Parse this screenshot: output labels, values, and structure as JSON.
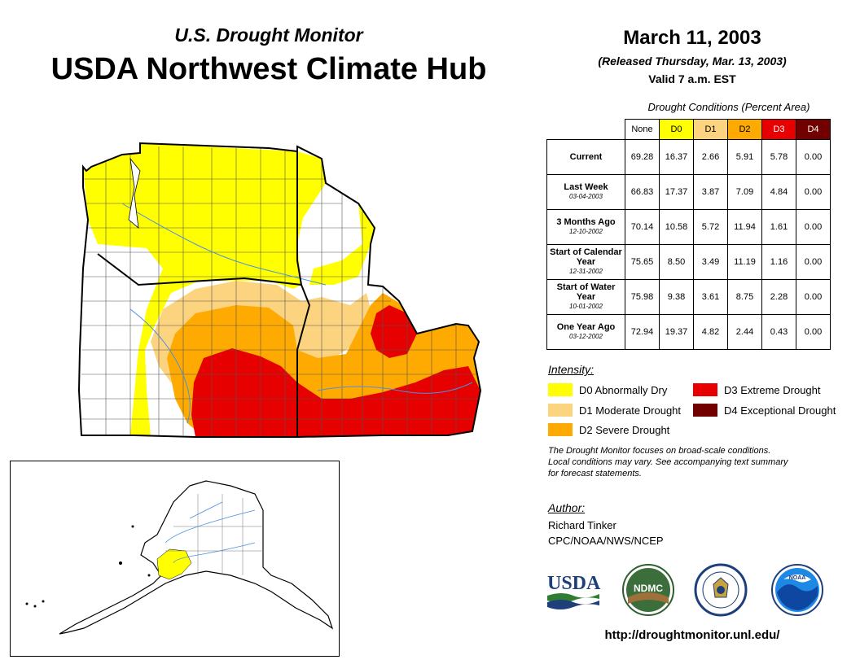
{
  "header": {
    "subtitle": "U.S. Drought Monitor",
    "title": "USDA Northwest Climate Hub"
  },
  "date": {
    "main": "March 11, 2003",
    "released": "(Released Thursday, Mar. 13, 2003)",
    "valid": "Valid 7 a.m. EST"
  },
  "table": {
    "caption": "Drought Conditions (Percent Area)",
    "columns": [
      {
        "label": "None",
        "color": "#ffffff",
        "text_color": "#000000"
      },
      {
        "label": "D0",
        "color": "#ffff00",
        "text_color": "#000000"
      },
      {
        "label": "D1",
        "color": "#fcd37f",
        "text_color": "#000000"
      },
      {
        "label": "D2",
        "color": "#ffaa00",
        "text_color": "#000000"
      },
      {
        "label": "D3",
        "color": "#e60000",
        "text_color": "#ffffff"
      },
      {
        "label": "D4",
        "color": "#730000",
        "text_color": "#ffffff"
      }
    ],
    "rows": [
      {
        "label": "Current",
        "sub": "",
        "values": [
          "69.28",
          "16.37",
          "2.66",
          "5.91",
          "5.78",
          "0.00"
        ]
      },
      {
        "label": "Last Week",
        "sub": "03-04-2003",
        "values": [
          "66.83",
          "17.37",
          "3.87",
          "7.09",
          "4.84",
          "0.00"
        ]
      },
      {
        "label": "3 Months Ago",
        "sub": "12-10-2002",
        "values": [
          "70.14",
          "10.58",
          "5.72",
          "11.94",
          "1.61",
          "0.00"
        ]
      },
      {
        "label": "Start of Calendar Year",
        "sub": "12-31-2002",
        "values": [
          "75.65",
          "8.50",
          "3.49",
          "11.19",
          "1.16",
          "0.00"
        ]
      },
      {
        "label": "Start of Water Year",
        "sub": "10-01-2002",
        "values": [
          "75.98",
          "9.38",
          "3.61",
          "8.75",
          "2.28",
          "0.00"
        ]
      },
      {
        "label": "One Year Ago",
        "sub": "03-12-2002",
        "values": [
          "72.94",
          "19.37",
          "4.82",
          "2.44",
          "0.43",
          "0.00"
        ]
      }
    ]
  },
  "legend": {
    "title": "Intensity:",
    "items": [
      {
        "label": "D0 Abnormally Dry",
        "color": "#ffff00"
      },
      {
        "label": "D1 Moderate Drought",
        "color": "#fcd37f"
      },
      {
        "label": "D2 Severe Drought",
        "color": "#ffaa00"
      },
      {
        "label": "D3 Extreme Drought",
        "color": "#e60000"
      },
      {
        "label": "D4 Exceptional Drought",
        "color": "#730000"
      }
    ]
  },
  "note": {
    "line1": "The Drought Monitor focuses on broad-scale conditions.",
    "line2": "Local conditions may vary. See accompanying text summary",
    "line3": "for forecast statements."
  },
  "author": {
    "title": "Author:",
    "name": "Richard Tinker",
    "org": "CPC/NOAA/NWS/NCEP"
  },
  "logos": {
    "usda": "USDA",
    "ndmc": "NDMC",
    "noaa": "NOAA"
  },
  "url": "http://droughtmonitor.unl.edu/"
}
